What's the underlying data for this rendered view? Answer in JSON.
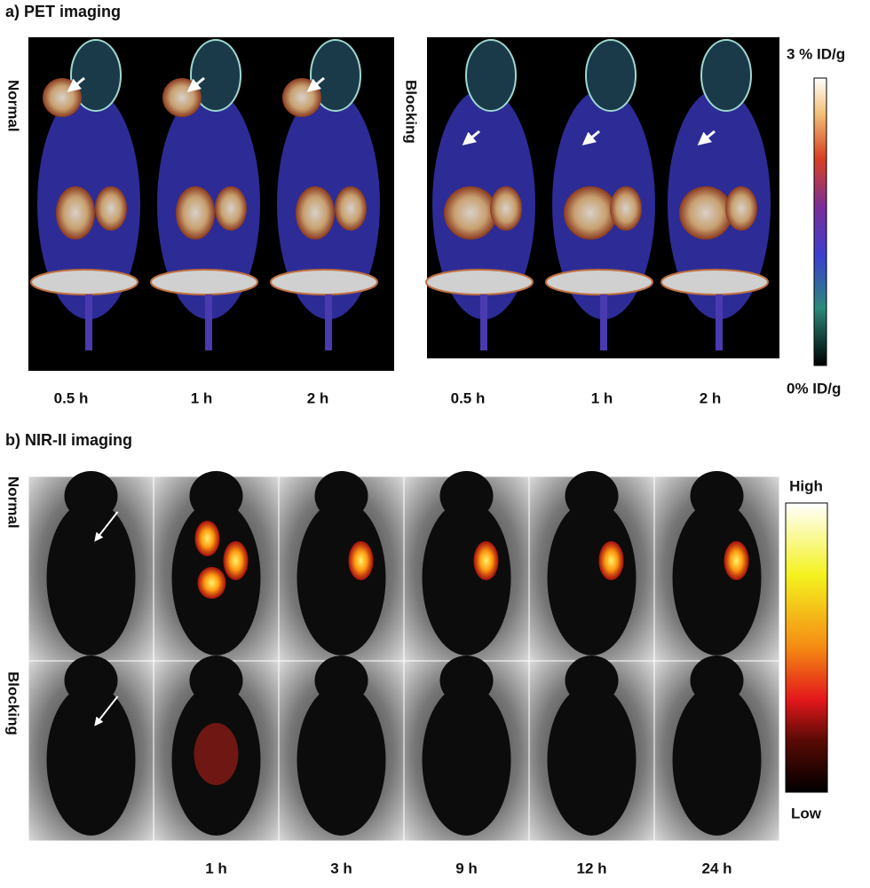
{
  "panel_a": {
    "title": "a) PET imaging",
    "row_labels": [
      "Normal",
      "Blocking"
    ],
    "colorbar": {
      "max_label": "3 % ID/g",
      "min_label": "0% ID/g"
    },
    "time_labels": [
      "0.5 h",
      "1 h",
      "2 h",
      "0.5 h",
      "1 h",
      "2 h"
    ]
  },
  "panel_b": {
    "title": "b) NIR-II imaging",
    "row_labels": [
      "Normal",
      "Blocking"
    ],
    "colorbar": {
      "max_label": "High",
      "min_label": "Low"
    },
    "time_labels": [
      "1 h",
      "3 h",
      "9 h",
      "12 h",
      "24 h"
    ]
  }
}
